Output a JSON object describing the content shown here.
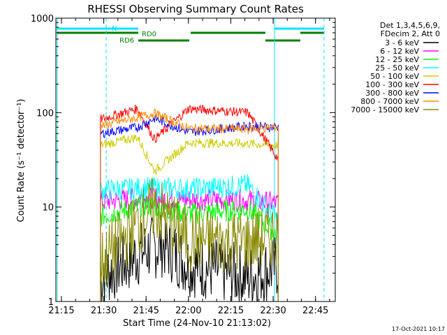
{
  "chart_data": {
    "type": "line",
    "title": "RHESSI Observing Summary Count Rates",
    "xlabel": "Start Time (24-Nov-10 21:13:02)",
    "ylabel": "Count Rate (s⁻¹ detector⁻¹)",
    "x_start": "21:13:02",
    "x_end": "22:52:00",
    "y_scale": "log",
    "ylim": [
      1,
      1000
    ],
    "x_ticks": [
      "21:15",
      "21:30",
      "21:45",
      "22:00",
      "22:15",
      "22:30",
      "22:45"
    ],
    "y_ticks": [
      "1",
      "10",
      "100",
      "1000"
    ],
    "legend_header": [
      "Det 1,3,4,5,6,9,",
      "FDecim 2, Att 0"
    ],
    "series": [
      {
        "name": "3 - 6 keV",
        "color": "#000000",
        "values": [
          [
            21.48,
            1.8
          ],
          [
            21.75,
            3.5
          ],
          [
            21.85,
            4.0
          ],
          [
            22.0,
            2.5
          ],
          [
            22.35,
            1.8
          ],
          [
            22.53,
            2.4
          ]
        ]
      },
      {
        "name": "6 - 12 keV",
        "color": "#ff00ff",
        "values": [
          [
            21.48,
            11.5
          ],
          [
            21.75,
            12.5
          ],
          [
            22.0,
            12.0
          ],
          [
            22.35,
            11.8
          ],
          [
            22.53,
            11.0
          ]
        ]
      },
      {
        "name": "12 - 25 keV",
        "color": "#00ff00",
        "values": [
          [
            21.48,
            8.0
          ],
          [
            21.75,
            10.5
          ],
          [
            22.0,
            8.5
          ],
          [
            22.35,
            9.5
          ],
          [
            22.53,
            5.0
          ]
        ]
      },
      {
        "name": "25 - 50 keV",
        "color": "#00ffff",
        "values": [
          [
            21.48,
            15.0
          ],
          [
            21.75,
            16.0
          ],
          [
            22.0,
            15.5
          ],
          [
            22.35,
            17.0
          ],
          [
            22.53,
            7.0
          ]
        ]
      },
      {
        "name": "50 - 100 keV",
        "color": "#cccc00",
        "values": [
          [
            21.48,
            45.0
          ],
          [
            21.7,
            55.0
          ],
          [
            21.8,
            24.0
          ],
          [
            22.0,
            48.0
          ],
          [
            22.35,
            47.0
          ],
          [
            22.53,
            45.0
          ]
        ]
      },
      {
        "name": "100 - 300 keV",
        "color": "#ff0000",
        "values": [
          [
            21.48,
            85.0
          ],
          [
            21.7,
            110.0
          ],
          [
            21.8,
            52.0
          ],
          [
            22.0,
            110.0
          ],
          [
            22.35,
            100.0
          ],
          [
            22.53,
            32.0
          ]
        ]
      },
      {
        "name": "300 - 800 keV",
        "color": "#0000ff",
        "values": [
          [
            21.48,
            60.0
          ],
          [
            21.7,
            70.0
          ],
          [
            21.8,
            87.0
          ],
          [
            22.0,
            62.0
          ],
          [
            22.35,
            72.0
          ],
          [
            22.53,
            70.0
          ]
        ]
      },
      {
        "name": "800 - 7000 keV",
        "color": "#ff8800",
        "values": [
          [
            21.48,
            72.0
          ],
          [
            21.8,
            98.0
          ],
          [
            22.0,
            68.0
          ],
          [
            22.35,
            67.0
          ],
          [
            22.53,
            70.0
          ]
        ]
      },
      {
        "name": "7000 - 15000 keV",
        "color": "#888800",
        "values": [
          [
            21.48,
            2.6
          ],
          [
            21.8,
            10.0
          ],
          [
            22.0,
            4.5
          ],
          [
            22.35,
            4.3
          ],
          [
            22.53,
            5.3
          ]
        ]
      }
    ],
    "annotations": {
      "n_label": "N",
      "rd0_label": "RD0",
      "rd6_label": "RD6"
    },
    "footer_date": "17-Oct-2021 10:17"
  }
}
